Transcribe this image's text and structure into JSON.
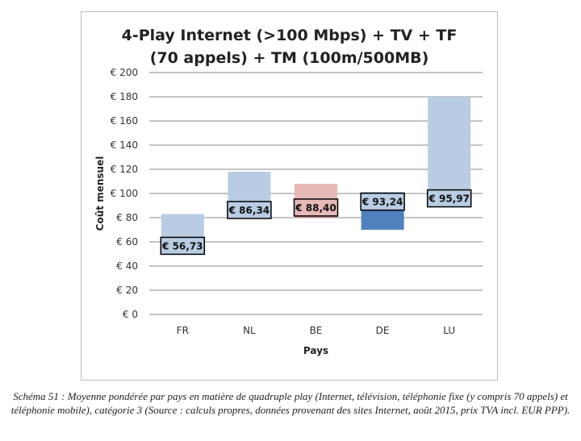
{
  "chart_data": {
    "type": "bar",
    "title_line1": "4-Play Internet (>100 Mbps) + TV + TF",
    "title_line2": "(70 appels) + TM (100m/500MB)",
    "xlabel": "Pays",
    "ylabel": "Coût mensuel",
    "ylim": [
      0,
      200
    ],
    "ytick_step": 20,
    "ytick_labels": [
      "€ 0",
      "€ 20",
      "€ 40",
      "€ 60",
      "€ 80",
      "€ 100",
      "€ 120",
      "€ 140",
      "€ 160",
      "€ 180",
      "€ 200"
    ],
    "grid": true,
    "categories": [
      "FR",
      "NL",
      "BE",
      "DE",
      "LU"
    ],
    "range_low": [
      56,
      92,
      80,
      70,
      100
    ],
    "range_high": [
      83,
      118,
      108,
      101,
      180
    ],
    "averages": [
      56.73,
      86.34,
      88.4,
      93.24,
      95.97
    ],
    "average_labels": [
      "€ 56,73",
      "€ 86,34",
      "€ 88,40",
      "€ 93,24",
      "€ 95,97"
    ],
    "colors": {
      "light_bar": "#b8cce4",
      "highlight_light": "#e6b9b8",
      "highlight_dark": "#d99694",
      "dark_bar": "#4f81bd",
      "label_fill_blue": "#b8cce4",
      "label_fill_red": "#e6b9b8"
    },
    "bar_styles": [
      "light",
      "light",
      "highlight",
      "dark",
      "light"
    ]
  },
  "caption": "Schéma 51 : Moyenne pondérée par pays en matière de quadruple play (Internet, télévision, téléphonie fixe (y compris 70 appels) et téléphonie mobile), catégorie 3 (Source : calculs propres, données provenant des sites Internet, août 2015, prix TVA incl. EUR PPP)."
}
